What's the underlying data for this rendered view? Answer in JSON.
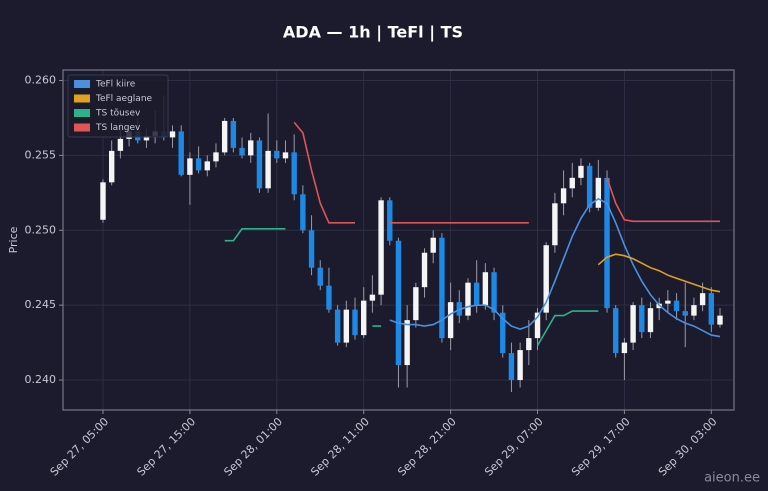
{
  "chart_data": {
    "type": "candlestick",
    "title": "ADA — 1h  |  TeFl  |  TS",
    "ylabel": "Price",
    "watermark": "aieon.ee",
    "x": [
      "Sep 27, 05:00",
      "Sep 27, 06:00",
      "Sep 27, 07:00",
      "Sep 27, 08:00",
      "Sep 27, 09:00",
      "Sep 27, 10:00",
      "Sep 27, 11:00",
      "Sep 27, 12:00",
      "Sep 27, 13:00",
      "Sep 27, 14:00",
      "Sep 27, 15:00",
      "Sep 27, 16:00",
      "Sep 27, 17:00",
      "Sep 27, 18:00",
      "Sep 27, 19:00",
      "Sep 27, 20:00",
      "Sep 27, 21:00",
      "Sep 27, 22:00",
      "Sep 27, 23:00",
      "Sep 28, 00:00",
      "Sep 28, 01:00",
      "Sep 28, 02:00",
      "Sep 28, 03:00",
      "Sep 28, 04:00",
      "Sep 28, 05:00",
      "Sep 28, 06:00",
      "Sep 28, 07:00",
      "Sep 28, 08:00",
      "Sep 28, 09:00",
      "Sep 28, 10:00",
      "Sep 28, 11:00",
      "Sep 28, 12:00",
      "Sep 28, 13:00",
      "Sep 28, 14:00",
      "Sep 28, 15:00",
      "Sep 28, 16:00",
      "Sep 28, 17:00",
      "Sep 28, 18:00",
      "Sep 28, 19:00",
      "Sep 28, 20:00",
      "Sep 28, 21:00",
      "Sep 28, 22:00",
      "Sep 28, 23:00",
      "Sep 29, 00:00",
      "Sep 29, 01:00",
      "Sep 29, 02:00",
      "Sep 29, 03:00",
      "Sep 29, 04:00",
      "Sep 29, 05:00",
      "Sep 29, 06:00",
      "Sep 29, 07:00",
      "Sep 29, 08:00",
      "Sep 29, 09:00",
      "Sep 29, 10:00",
      "Sep 29, 11:00",
      "Sep 29, 12:00",
      "Sep 29, 13:00",
      "Sep 29, 14:00",
      "Sep 29, 15:00",
      "Sep 29, 16:00",
      "Sep 29, 17:00",
      "Sep 29, 18:00",
      "Sep 29, 19:00",
      "Sep 29, 20:00",
      "Sep 29, 21:00",
      "Sep 29, 22:00",
      "Sep 29, 23:00",
      "Sep 30, 00:00",
      "Sep 30, 01:00",
      "Sep 30, 02:00",
      "Sep 30, 03:00",
      "Sep 30, 04:00"
    ],
    "xticks": [
      "Sep 27, 05:00",
      "Sep 27, 15:00",
      "Sep 28, 01:00",
      "Sep 28, 11:00",
      "Sep 28, 21:00",
      "Sep 29, 07:00",
      "Sep 29, 17:00",
      "Sep 30, 03:00"
    ],
    "open": [
      0.2507,
      0.2532,
      0.2553,
      0.2561,
      0.2566,
      0.256,
      0.2563,
      0.2566,
      0.2562,
      0.2566,
      0.2537,
      0.2548,
      0.254,
      0.2546,
      0.2552,
      0.2573,
      0.2555,
      0.255,
      0.256,
      0.2528,
      0.2553,
      0.2548,
      0.2552,
      0.2524,
      0.25,
      0.2475,
      0.2463,
      0.2447,
      0.2425,
      0.2447,
      0.243,
      0.2453,
      0.2457,
      0.252,
      0.2493,
      0.241,
      0.244,
      0.2462,
      0.2485,
      0.2495,
      0.2428,
      0.2452,
      0.2443,
      0.2465,
      0.245,
      0.2472,
      0.2445,
      0.2418,
      0.24,
      0.242,
      0.2428,
      0.2445,
      0.249,
      0.2518,
      0.2528,
      0.2535,
      0.2543,
      0.2515,
      0.2535,
      0.2448,
      0.2418,
      0.2425,
      0.245,
      0.2432,
      0.2448,
      0.2451,
      0.2453,
      0.2446,
      0.2443,
      0.245,
      0.2458,
      0.2437
    ],
    "high": [
      0.2534,
      0.256,
      0.2572,
      0.257,
      0.2575,
      0.2568,
      0.258,
      0.259,
      0.257,
      0.257,
      0.2552,
      0.2556,
      0.255,
      0.2558,
      0.2575,
      0.2575,
      0.2562,
      0.2565,
      0.2562,
      0.2578,
      0.256,
      0.256,
      0.2564,
      0.253,
      0.251,
      0.248,
      0.2475,
      0.245,
      0.2453,
      0.2455,
      0.2462,
      0.247,
      0.2522,
      0.2522,
      0.2495,
      0.245,
      0.2465,
      0.2488,
      0.25,
      0.2498,
      0.2465,
      0.246,
      0.2468,
      0.248,
      0.2478,
      0.2475,
      0.245,
      0.2425,
      0.2425,
      0.244,
      0.2448,
      0.2492,
      0.2525,
      0.254,
      0.2545,
      0.2548,
      0.2545,
      0.2547,
      0.254,
      0.245,
      0.2428,
      0.2452,
      0.2455,
      0.2452,
      0.2455,
      0.246,
      0.2458,
      0.2465,
      0.2455,
      0.2465,
      0.2462,
      0.2448
    ],
    "low": [
      0.2505,
      0.253,
      0.2548,
      0.2556,
      0.2558,
      0.2555,
      0.2558,
      0.256,
      0.2555,
      0.2536,
      0.2517,
      0.2538,
      0.2536,
      0.2542,
      0.255,
      0.2552,
      0.2548,
      0.2545,
      0.2525,
      0.2525,
      0.2545,
      0.2545,
      0.252,
      0.2498,
      0.247,
      0.246,
      0.2445,
      0.2423,
      0.2422,
      0.2427,
      0.2428,
      0.2445,
      0.245,
      0.249,
      0.2395,
      0.2395,
      0.2435,
      0.2455,
      0.2478,
      0.2425,
      0.242,
      0.2438,
      0.244,
      0.2445,
      0.2447,
      0.244,
      0.2415,
      0.2392,
      0.2395,
      0.241,
      0.242,
      0.244,
      0.2485,
      0.251,
      0.2522,
      0.253,
      0.2512,
      0.2513,
      0.2445,
      0.2415,
      0.24,
      0.242,
      0.2428,
      0.2428,
      0.244,
      0.2445,
      0.244,
      0.2422,
      0.244,
      0.2446,
      0.2432,
      0.2435
    ],
    "close": [
      0.2532,
      0.2553,
      0.2561,
      0.2566,
      0.256,
      0.2563,
      0.2566,
      0.2562,
      0.2566,
      0.2537,
      0.2548,
      0.254,
      0.2546,
      0.2552,
      0.2573,
      0.2555,
      0.255,
      0.256,
      0.2528,
      0.2553,
      0.2548,
      0.2552,
      0.2524,
      0.25,
      0.2475,
      0.2463,
      0.2447,
      0.2425,
      0.2447,
      0.243,
      0.2453,
      0.2457,
      0.252,
      0.2493,
      0.241,
      0.244,
      0.2462,
      0.2485,
      0.2495,
      0.2428,
      0.2452,
      0.2443,
      0.2465,
      0.245,
      0.2472,
      0.2445,
      0.2418,
      0.24,
      0.242,
      0.2428,
      0.2445,
      0.249,
      0.2518,
      0.2528,
      0.2535,
      0.2543,
      0.2515,
      0.2535,
      0.2448,
      0.2418,
      0.2425,
      0.245,
      0.2432,
      0.2448,
      0.2451,
      0.2453,
      0.2446,
      0.2443,
      0.245,
      0.2458,
      0.2437,
      0.2443
    ],
    "up_color": "#f5f5f5",
    "down_color": "#1e88e5",
    "lines": [
      {
        "name": "TeFl kiire",
        "color": "#4a90e2",
        "values": [
          null,
          null,
          null,
          null,
          null,
          null,
          null,
          null,
          null,
          null,
          null,
          null,
          null,
          null,
          null,
          null,
          null,
          null,
          null,
          null,
          null,
          null,
          null,
          null,
          null,
          null,
          null,
          null,
          null,
          null,
          null,
          null,
          null,
          0.244,
          0.2438,
          0.2437,
          0.2437,
          0.2436,
          0.2437,
          0.244,
          0.2444,
          0.2447,
          0.2449,
          0.245,
          0.245,
          0.2447,
          0.2441,
          0.2436,
          0.2434,
          0.2436,
          0.2442,
          0.2452,
          0.2466,
          0.2481,
          0.2496,
          0.2508,
          0.2517,
          0.2521,
          0.2518,
          0.2505,
          0.249,
          0.2477,
          0.2466,
          0.2457,
          0.245,
          0.2445,
          0.2441,
          0.2438,
          0.2436,
          0.2433,
          0.243,
          0.2429
        ]
      },
      {
        "name": "TeFl aeglane",
        "color": "#e0a020",
        "values": [
          null,
          null,
          null,
          null,
          null,
          null,
          null,
          null,
          null,
          null,
          null,
          null,
          null,
          null,
          null,
          null,
          null,
          null,
          null,
          null,
          null,
          null,
          null,
          null,
          null,
          null,
          null,
          null,
          null,
          null,
          null,
          null,
          null,
          null,
          null,
          null,
          null,
          null,
          null,
          null,
          null,
          null,
          null,
          null,
          null,
          null,
          null,
          null,
          null,
          null,
          null,
          null,
          null,
          null,
          null,
          null,
          null,
          0.2477,
          0.2482,
          0.2484,
          0.2483,
          0.2481,
          0.2478,
          0.2475,
          0.2473,
          0.247,
          0.2468,
          0.2466,
          0.2464,
          0.2462,
          0.246,
          0.2459
        ]
      },
      {
        "name": "TS tõusev",
        "color": "#2bb38a",
        "values": [
          null,
          null,
          null,
          null,
          null,
          null,
          null,
          null,
          null,
          null,
          null,
          null,
          null,
          null,
          0.2493,
          0.2493,
          0.2501,
          0.2501,
          0.2501,
          0.2501,
          0.2501,
          0.2501,
          null,
          null,
          null,
          null,
          null,
          null,
          null,
          null,
          null,
          0.2436,
          0.2436,
          null,
          null,
          null,
          null,
          null,
          null,
          null,
          null,
          null,
          null,
          null,
          null,
          null,
          null,
          null,
          null,
          null,
          0.2423,
          0.2433,
          0.2443,
          0.2443,
          0.2446,
          0.2446,
          0.2446,
          0.2446,
          null,
          null,
          null,
          null,
          null,
          null,
          null,
          null,
          null,
          null,
          null,
          null,
          null,
          null
        ]
      },
      {
        "name": "TS langev",
        "color": "#e05555",
        "values": [
          null,
          null,
          null,
          null,
          null,
          null,
          null,
          null,
          null,
          null,
          null,
          null,
          null,
          null,
          null,
          null,
          null,
          null,
          null,
          null,
          null,
          null,
          0.2572,
          0.2565,
          0.254,
          0.2518,
          0.2505,
          0.2505,
          0.2505,
          0.2505,
          null,
          null,
          null,
          0.2505,
          0.2505,
          0.2505,
          0.2505,
          0.2505,
          0.2505,
          0.2505,
          0.2505,
          0.2505,
          0.2505,
          0.2505,
          0.2505,
          0.2505,
          0.2505,
          0.2505,
          0.2505,
          0.2505,
          null,
          null,
          null,
          null,
          null,
          null,
          null,
          null,
          0.2535,
          0.2518,
          0.2507,
          0.2506,
          0.2506,
          0.2506,
          0.2506,
          0.2506,
          0.2506,
          0.2506,
          0.2506,
          0.2506,
          0.2506,
          0.2506
        ]
      }
    ],
    "ylim": [
      0.238,
      0.2607
    ],
    "yticks": [
      {
        "value": 0.24,
        "label": "0.240"
      },
      0.245,
      {
        "value": 0.25,
        "label": "0.250"
      },
      0.255,
      {
        "value": 0.26,
        "label": "0.260"
      }
    ],
    "grid": true,
    "legend": "upper left"
  }
}
